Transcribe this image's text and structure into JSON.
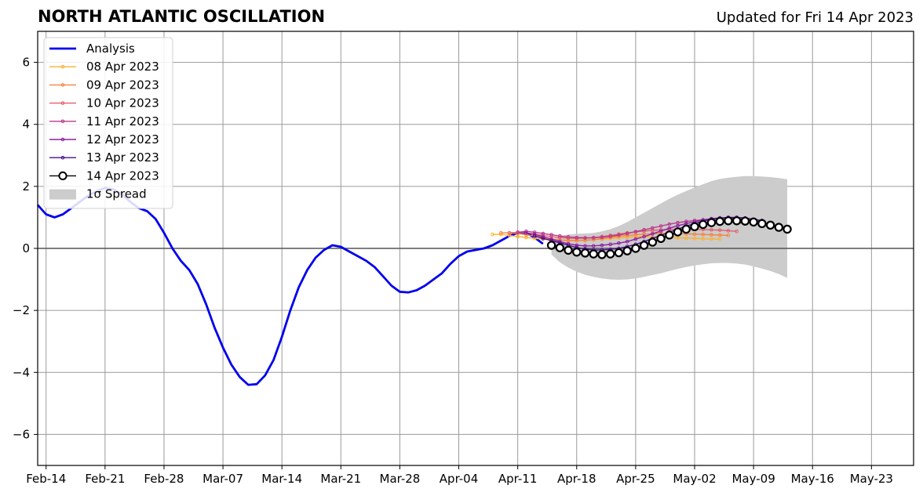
{
  "chart_data": {
    "type": "line",
    "title": "NORTH ATLANTIC OSCILLATION",
    "subtitle": "Updated for Fri 14 Apr 2023",
    "xlabel": "",
    "ylabel": "",
    "x_axis": {
      "start": "2023-02-13",
      "end": "2023-05-28"
    },
    "ylim": [
      -7,
      7
    ],
    "grid": true,
    "legend_position": "top-left",
    "x_tick_labels": [
      "Feb-14",
      "Feb-21",
      "Feb-28",
      "Mar-07",
      "Mar-14",
      "Mar-21",
      "Mar-28",
      "Apr-04",
      "Apr-11",
      "Apr-18",
      "Apr-25",
      "May-02",
      "May-09",
      "May-16",
      "May-23"
    ],
    "x_tick_dates": [
      "2023-02-14",
      "2023-02-21",
      "2023-02-28",
      "2023-03-07",
      "2023-03-14",
      "2023-03-21",
      "2023-03-28",
      "2023-04-04",
      "2023-04-11",
      "2023-04-18",
      "2023-04-25",
      "2023-05-02",
      "2023-05-09",
      "2023-05-16",
      "2023-05-23"
    ],
    "y_ticks": [
      -6,
      -4,
      -2,
      0,
      2,
      4,
      6
    ],
    "y_tick_labels": [
      "−6",
      "−4",
      "−2",
      "0",
      "2",
      "4",
      "6"
    ],
    "analysis": {
      "name": "Analysis",
      "color": "#0000ee",
      "x": [
        "2023-02-13",
        "2023-02-14",
        "2023-02-15",
        "2023-02-16",
        "2023-02-17",
        "2023-02-18",
        "2023-02-19",
        "2023-02-20",
        "2023-02-21",
        "2023-02-22",
        "2023-02-23",
        "2023-02-24",
        "2023-02-25",
        "2023-02-26",
        "2023-02-27",
        "2023-02-28",
        "2023-03-01",
        "2023-03-02",
        "2023-03-03",
        "2023-03-04",
        "2023-03-05",
        "2023-03-06",
        "2023-03-07",
        "2023-03-08",
        "2023-03-09",
        "2023-03-10",
        "2023-03-11",
        "2023-03-12",
        "2023-03-13",
        "2023-03-14",
        "2023-03-15",
        "2023-03-16",
        "2023-03-17",
        "2023-03-18",
        "2023-03-19",
        "2023-03-20",
        "2023-03-21",
        "2023-03-22",
        "2023-03-23",
        "2023-03-24",
        "2023-03-25",
        "2023-03-26",
        "2023-03-27",
        "2023-03-28",
        "2023-03-29",
        "2023-03-30",
        "2023-03-31",
        "2023-04-01",
        "2023-04-02",
        "2023-04-03",
        "2023-04-04",
        "2023-04-05",
        "2023-04-06",
        "2023-04-07",
        "2023-04-08",
        "2023-04-09",
        "2023-04-10",
        "2023-04-11",
        "2023-04-12",
        "2023-04-13",
        "2023-04-14"
      ],
      "y": [
        1.4,
        1.1,
        1.0,
        1.1,
        1.3,
        1.5,
        1.7,
        1.85,
        1.95,
        1.9,
        1.75,
        1.5,
        1.3,
        1.2,
        0.95,
        0.5,
        0.0,
        -0.4,
        -0.7,
        -1.15,
        -1.8,
        -2.55,
        -3.2,
        -3.75,
        -4.15,
        -4.4,
        -4.38,
        -4.1,
        -3.6,
        -2.85,
        -2.0,
        -1.25,
        -0.7,
        -0.3,
        -0.05,
        0.1,
        0.05,
        -0.1,
        -0.25,
        -0.4,
        -0.6,
        -0.9,
        -1.2,
        -1.4,
        -1.42,
        -1.35,
        -1.2,
        -1.0,
        -0.8,
        -0.5,
        -0.25,
        -0.1,
        -0.05,
        0.0,
        0.1,
        0.25,
        0.4,
        0.5,
        0.5,
        0.35,
        0.15
      ]
    },
    "forecasts": [
      {
        "name": "08 Apr 2023",
        "color": "#fcb034",
        "start": "2023-04-08",
        "y": [
          0.45,
          0.45,
          0.42,
          0.38,
          0.35,
          0.32,
          0.3,
          0.28,
          0.27,
          0.26,
          0.26,
          0.27,
          0.28,
          0.3,
          0.32,
          0.34,
          0.36,
          0.38,
          0.38,
          0.37,
          0.36,
          0.35,
          0.34,
          0.33,
          0.32,
          0.31,
          0.3,
          0.3
        ]
      },
      {
        "name": "09 Apr 2023",
        "color": "#f4853e",
        "start": "2023-04-09",
        "y": [
          0.5,
          0.5,
          0.48,
          0.44,
          0.4,
          0.35,
          0.3,
          0.27,
          0.25,
          0.25,
          0.26,
          0.28,
          0.31,
          0.35,
          0.39,
          0.42,
          0.44,
          0.46,
          0.47,
          0.48,
          0.48,
          0.48,
          0.47,
          0.46,
          0.45,
          0.44,
          0.43,
          0.42
        ]
      },
      {
        "name": "10 Apr 2023",
        "color": "#e35e6a",
        "start": "2023-04-10",
        "y": [
          0.5,
          0.52,
          0.5,
          0.46,
          0.42,
          0.38,
          0.35,
          0.33,
          0.32,
          0.33,
          0.35,
          0.38,
          0.42,
          0.46,
          0.5,
          0.53,
          0.56,
          0.58,
          0.6,
          0.61,
          0.62,
          0.62,
          0.62,
          0.61,
          0.6,
          0.59,
          0.57,
          0.55
        ]
      },
      {
        "name": "11 Apr 2023",
        "color": "#b83a8c",
        "start": "2023-04-11",
        "y": [
          0.52,
          0.55,
          0.52,
          0.48,
          0.44,
          0.4,
          0.37,
          0.35,
          0.34,
          0.34,
          0.36,
          0.39,
          0.43,
          0.48,
          0.54,
          0.6,
          0.66,
          0.72,
          0.78,
          0.83,
          0.87,
          0.9,
          0.92,
          0.92,
          0.9,
          0.87,
          0.83,
          0.8
        ]
      },
      {
        "name": "12 Apr 2023",
        "color": "#8e1fa3",
        "start": "2023-04-12",
        "y": [
          0.5,
          0.45,
          0.38,
          0.3,
          0.22,
          0.15,
          0.1,
          0.08,
          0.08,
          0.1,
          0.13,
          0.17,
          0.22,
          0.3,
          0.38,
          0.47,
          0.56,
          0.65,
          0.73,
          0.8,
          0.86,
          0.92,
          0.96,
          0.98,
          0.98,
          0.96,
          0.93,
          0.9
        ]
      },
      {
        "name": "13 Apr 2023",
        "color": "#4b0c8c",
        "start": "2023-04-13",
        "y": [
          0.4,
          0.32,
          0.25,
          0.18,
          0.1,
          0.03,
          -0.02,
          -0.05,
          -0.05,
          -0.03,
          0.0,
          0.06,
          0.13,
          0.22,
          0.32,
          0.42,
          0.52,
          0.62,
          0.72,
          0.8,
          0.88,
          0.94,
          0.98,
          1.0,
          1.0,
          0.98,
          0.94,
          0.9
        ]
      },
      {
        "name": "14 Apr 2023",
        "color": "#000000",
        "start": "2023-04-15",
        "y": [
          0.1,
          0.02,
          -0.06,
          -0.12,
          -0.15,
          -0.18,
          -0.2,
          -0.18,
          -0.14,
          -0.08,
          0.0,
          0.1,
          0.2,
          0.32,
          0.43,
          0.53,
          0.62,
          0.7,
          0.77,
          0.83,
          0.87,
          0.89,
          0.89,
          0.88,
          0.85,
          0.8,
          0.75,
          0.68,
          0.62
        ]
      }
    ],
    "spread": {
      "name": "1σ Spread",
      "color": "#cccccc",
      "x": [
        "2023-04-15",
        "2023-04-16",
        "2023-04-17",
        "2023-04-18",
        "2023-04-19",
        "2023-04-20",
        "2023-04-21",
        "2023-04-22",
        "2023-04-23",
        "2023-04-24",
        "2023-04-25",
        "2023-04-26",
        "2023-04-27",
        "2023-04-28",
        "2023-04-29",
        "2023-04-30",
        "2023-05-01",
        "2023-05-02",
        "2023-05-03",
        "2023-05-04",
        "2023-05-05",
        "2023-05-06",
        "2023-05-07",
        "2023-05-08",
        "2023-05-09",
        "2023-05-10",
        "2023-05-11",
        "2023-05-12",
        "2023-05-13"
      ],
      "upper": [
        0.3,
        0.4,
        0.45,
        0.47,
        0.48,
        0.5,
        0.55,
        0.62,
        0.72,
        0.85,
        1.0,
        1.15,
        1.3,
        1.45,
        1.6,
        1.73,
        1.85,
        1.96,
        2.07,
        2.17,
        2.24,
        2.28,
        2.31,
        2.33,
        2.33,
        2.32,
        2.3,
        2.27,
        2.23
      ],
      "lower": [
        -0.2,
        -0.45,
        -0.62,
        -0.75,
        -0.85,
        -0.92,
        -0.97,
        -1.0,
        -1.01,
        -1.0,
        -0.97,
        -0.92,
        -0.86,
        -0.8,
        -0.73,
        -0.66,
        -0.6,
        -0.55,
        -0.51,
        -0.48,
        -0.47,
        -0.47,
        -0.49,
        -0.52,
        -0.58,
        -0.65,
        -0.73,
        -0.83,
        -0.95
      ]
    }
  }
}
